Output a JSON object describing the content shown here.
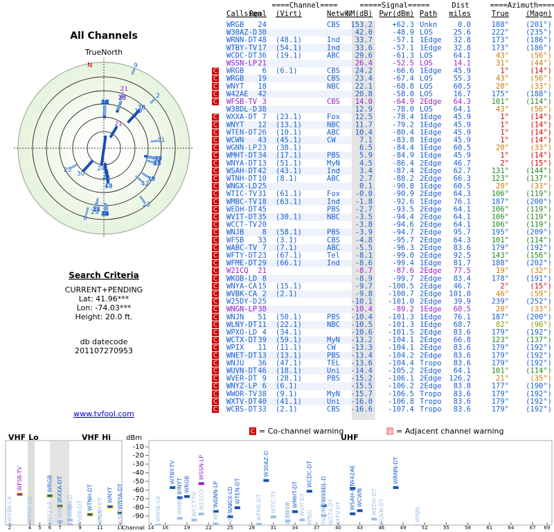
{
  "left": {
    "title": "All Channels",
    "north_label": "TrueNorth",
    "north_mark": "N",
    "criteria_title": "Search Criteria",
    "criteria": [
      "CURRENT+PENDING",
      "Lat: 41.96***",
      "Lon: -74.03***",
      "Height: 20.0 ft."
    ],
    "datecode_label": "db datecode",
    "datecode": "201107270953",
    "link": "www.tvfool.com"
  },
  "table": {
    "group_headers": [
      "====Channel====",
      "=====Signal=====",
      "Dist",
      "====Azimuth===="
    ],
    "columns": [
      "Callsign",
      "Real",
      "(Virt)",
      "Netwk",
      "NM(dB)",
      "Pwr(dBm)",
      "Path",
      "miles",
      "True",
      "(Magn)"
    ],
    "rows": [
      [
        "WRGB",
        "24",
        "",
        "CBS",
        "153.2",
        "+62.3",
        "Unkn",
        "0.0",
        "188°",
        "(201°)"
      ],
      [
        "W30AZ-D",
        "30",
        "",
        "",
        "42.0",
        "-48.9",
        "LOS",
        "25.6",
        "222°",
        "(235°)"
      ],
      [
        "WRNN-DT",
        "48",
        "(48.1)",
        "Ind",
        "33.7",
        "-57.1",
        "1Edge",
        "32.8",
        "173°",
        "(186°)"
      ],
      [
        "WTBY-TV",
        "17",
        "(54.1)",
        "Ind",
        "33.6",
        "-57.1",
        "1Edge",
        "32.8",
        "173°",
        "(186°)"
      ],
      [
        "WCDC-DT",
        "36",
        "(19.1)",
        "ABC",
        "29.6",
        "-61.3",
        "LOS",
        "64.1",
        "43°",
        "(56°)"
      ],
      [
        "WSSN-LP",
        "21",
        "",
        "",
        "26.4",
        "-52.5",
        "LOS",
        "14.1",
        "31°",
        "(44°)"
      ],
      [
        "WRGB",
        "6",
        "(6.1)",
        "CBS",
        "24.2",
        "-66.6",
        "1Edge",
        "45.9",
        "1°",
        "(14°)"
      ],
      [
        "WRGB",
        "19",
        "",
        "CBS",
        "23.4",
        "-67.4",
        "LOS",
        "55.3",
        "43°",
        "(56°)"
      ],
      [
        "WNYT",
        "18",
        "",
        "NBC",
        "22.1",
        "-68.8",
        "LOS",
        "60.5",
        "20°",
        "(33°)"
      ],
      [
        "W42AE",
        "42",
        "",
        "",
        "20.8",
        "-58.0",
        "LOS",
        "16.7",
        "175°",
        "(188°)"
      ],
      [
        "WFSB-TV",
        "3",
        "",
        "CBS",
        "14.0",
        "-64.9",
        "2Edge",
        "64.3",
        "101°",
        "(114°)"
      ],
      [
        "W38DL-D",
        "38",
        "",
        "",
        "12.9",
        "-78.0",
        "LOS",
        "64.1",
        "43°",
        "(56°)"
      ],
      [
        "WXXA-DT",
        "7",
        "(23.1)",
        "Fox",
        "12.5",
        "-78.4",
        "1Edge",
        "45.9",
        "1°",
        "(14°)"
      ],
      [
        "WNYT",
        "12",
        "(13.1)",
        "NBC",
        "11.7",
        "-79.2",
        "1Edge",
        "45.9",
        "1°",
        "(14°)"
      ],
      [
        "WTEN-DT",
        "26",
        "(10.1)",
        "ABC",
        "10.4",
        "-80.4",
        "1Edge",
        "45.9",
        "1°",
        "(14°)"
      ],
      [
        "WCWN",
        "43",
        "(45.1)",
        "CW",
        "7.1",
        "-83.8",
        "1Edge",
        "45.9",
        "1°",
        "(14°)"
      ],
      [
        "WGNN-LP",
        "23",
        "(38.1)",
        "",
        "6.5",
        "-84.4",
        "1Edge",
        "60.5",
        "20°",
        "(33°)"
      ],
      [
        "WMHT-DT",
        "34",
        "(17.1)",
        "PBS",
        "5.9",
        "-84.9",
        "1Edge",
        "45.9",
        "1°",
        "(14°)"
      ],
      [
        "WNYA-DT",
        "13",
        "(51.1)",
        "MyN",
        "4.5",
        "-86.4",
        "2Edge",
        "46.7",
        "2°",
        "(15°)"
      ],
      [
        "WSAH-DT",
        "42",
        "(43.1)",
        "Ind",
        "3.4",
        "-87.4",
        "2Edge",
        "62.7",
        "131°",
        "(144°)"
      ],
      [
        "WTNH-DT",
        "10",
        "(8.1)",
        "ABC",
        "2.7",
        "-88.2",
        "2Edge",
        "66.3",
        "123°",
        "(137°)"
      ],
      [
        "WNGX-LD",
        "25",
        "",
        "",
        "0.1",
        "-90.8",
        "1Edge",
        "60.5",
        "20°",
        "(33°)"
      ],
      [
        "WTIC-TV",
        "31",
        "(61.1)",
        "Fox",
        "-0.0",
        "-90.9",
        "2Edge",
        "64.3",
        "106°",
        "(119°)"
      ],
      [
        "WMBC-TV",
        "18",
        "(63.1)",
        "Ind",
        "-1.8",
        "-92.6",
        "1Edge",
        "76.1",
        "187°",
        "(200°)"
      ],
      [
        "WEDH-DT",
        "45",
        "",
        "PBS",
        "-2.7",
        "-93.5",
        "2Edge",
        "64.1",
        "106°",
        "(119°)"
      ],
      [
        "WVIT-DT",
        "35",
        "(30.1)",
        "NBC",
        "-3.5",
        "-94.4",
        "2Edge",
        "64.1",
        "106°",
        "(119°)"
      ],
      [
        "WCCT-TV",
        "20",
        "",
        "",
        "-3.8",
        "-94.6",
        "2Edge",
        "64.1",
        "106°",
        "(119°)"
      ],
      [
        "WNJB",
        "8",
        "(58.1)",
        "PBS",
        "-3.9",
        "-94.7",
        "2Edge",
        "95.7",
        "195°",
        "(209°)"
      ],
      [
        "WFSB",
        "33",
        "(3.1)",
        "CBS",
        "-4.8",
        "-95.7",
        "2Edge",
        "64.3",
        "101°",
        "(114°)"
      ],
      [
        "WABC-TV",
        "7",
        "(7.1)",
        "ABC",
        "-5.5",
        "-96.3",
        "2Edge",
        "83.6",
        "179°",
        "(192°)"
      ],
      [
        "WFTY-DT",
        "23",
        "(67.1)",
        "Tel",
        "-8.1",
        "-99.0",
        "2Edge",
        "92.5",
        "143°",
        "(156°)"
      ],
      [
        "WFME-DT",
        "29",
        "(66.1)",
        "Ind",
        "-8.6",
        "-99.4",
        "1Edge",
        "81.7",
        "188°",
        "(202°)"
      ],
      [
        "W21CQ",
        "21",
        "",
        "",
        "-8.7",
        "-87.6",
        "2Edge",
        "77.5",
        "19°",
        "(32°)"
      ],
      [
        "WKOB-LD",
        "8",
        "",
        "",
        "-8.9",
        "-99.7",
        "2Edge",
        "83.4",
        "178°",
        "(191°)"
      ],
      [
        "WNYA-CA",
        "15",
        "(15.1)",
        "",
        "-9.7",
        "-100.5",
        "2Edge",
        "46.7",
        "2°",
        "(15°)"
      ],
      [
        "WVBK-CA",
        "2",
        "(2.1)",
        "",
        "-9.8",
        "-100.7",
        "2Edge",
        "101.0",
        "46°",
        "(59°)"
      ],
      [
        "W25DY-D",
        "25",
        "",
        "",
        "-10.1",
        "-101.0",
        "2Edge",
        "39.9",
        "239°",
        "(252°)"
      ],
      [
        "WNGN-LP",
        "38",
        "",
        "",
        "-10.4",
        "-89.2",
        "1Edge",
        "60.5",
        "20°",
        "(33°)"
      ],
      [
        "WNJN",
        "51",
        "(50.1)",
        "PBS",
        "-10.4",
        "-101.3",
        "1Edge",
        "76.1",
        "187°",
        "(200°)"
      ],
      [
        "WLNY-DT",
        "11",
        "(22.1)",
        "NBC",
        "-10.5",
        "-101.3",
        "1Edge",
        "68.7",
        "82°",
        "(96°)"
      ],
      [
        "WPXO-LD",
        "4",
        "(34.1)",
        "",
        "-10.6",
        "-101.5",
        "2Edge",
        "83.6",
        "179°",
        "(192°)"
      ],
      [
        "WCTX-DT",
        "39",
        "(59.1)",
        "MyN",
        "-13.2",
        "-104.1",
        "2Edge",
        "66.8",
        "123°",
        "(137°)"
      ],
      [
        "WPIX",
        "11",
        "(11.1)",
        "CW",
        "-13.3",
        "-104.1",
        "2Edge",
        "83.6",
        "179°",
        "(192°)"
      ],
      [
        "WNET-DT",
        "13",
        "(13.1)",
        "PBS",
        "-13.4",
        "-104.2",
        "2Edge",
        "83.6",
        "179°",
        "(192°)"
      ],
      [
        "WNJU",
        "36",
        "(47.1)",
        "TEL",
        "-13.6",
        "-104.4",
        "Tropo",
        "83.6",
        "179°",
        "(192°)"
      ],
      [
        "WUVN-DT",
        "46",
        "(18.1)",
        "Uni",
        "-14.4",
        "-105.2",
        "2Edge",
        "64.1",
        "101°",
        "(114°)"
      ],
      [
        "WVER-DT",
        "9",
        "(28.1)",
        "PBS",
        "-15.2",
        "-106.1",
        "2Edge",
        "126.2",
        "21°",
        "(35°)"
      ],
      [
        "WNYZ-LP",
        "6",
        "(6.1)",
        "",
        "-15.5",
        "-106.2",
        "2Edge",
        "83.8",
        "177°",
        "(190°)"
      ],
      [
        "WWOR-TV",
        "38",
        "(9.1)",
        "MyN",
        "-15.7",
        "-106.5",
        "Tropo",
        "83.6",
        "179°",
        "(192°)"
      ],
      [
        "WXTV-DT",
        "40",
        "(41.1)",
        "Uni",
        "-16.0",
        "-106.8",
        "Tropo",
        "83.6",
        "179°",
        "(192°)"
      ],
      [
        "WCBS-DT",
        "33",
        "(2.1)",
        "CBS",
        "-16.6",
        "-107.4",
        "Tropo",
        "83.6",
        "179°",
        "(192°)"
      ]
    ],
    "flags": [
      "",
      "",
      "",
      "",
      "",
      "",
      "C",
      "C",
      "C",
      "C",
      "C",
      "",
      "C",
      "C",
      "C",
      "C",
      "C",
      "C",
      "C",
      "C",
      "C",
      "C",
      "C",
      "C",
      "C",
      "C",
      "C",
      "C",
      "C",
      "C",
      "C",
      "C",
      "C",
      "C",
      "C",
      "C",
      "C",
      "C",
      "C",
      "C",
      "C",
      "C",
      "C",
      "C",
      "C",
      "C",
      "C",
      "C",
      "C",
      "C",
      "C"
    ],
    "colors": [
      "#1a5fd0",
      "#1a5fd0",
      "#1a5fd0",
      "#1a5fd0",
      "#1a5fd0",
      "#9922cc",
      "#1a5fd0",
      "#1a5fd0",
      "#1a5fd0",
      "#1a5fd0",
      "#9922cc",
      "#1a5fd0",
      "#1a5fd0",
      "#1a5fd0",
      "#1a5fd0",
      "#1a5fd0",
      "#1a5fd0",
      "#1a5fd0",
      "#1a5fd0",
      "#1a5fd0",
      "#1a5fd0",
      "#1a5fd0",
      "#1a5fd0",
      "#1a5fd0",
      "#1a5fd0",
      "#1a5fd0",
      "#1a5fd0",
      "#1a5fd0",
      "#1a5fd0",
      "#1a5fd0",
      "#1a5fd0",
      "#1a5fd0",
      "#9922cc",
      "#1a5fd0",
      "#1a5fd0",
      "#1a5fd0",
      "#1a5fd0",
      "#9922cc",
      "#1a5fd0",
      "#1a5fd0",
      "#1a5fd0",
      "#1a5fd0",
      "#1a5fd0",
      "#1a5fd0",
      "#1a5fd0",
      "#1a5fd0",
      "#1a5fd0",
      "#1a5fd0",
      "#1a5fd0",
      "#1a5fd0",
      "#1a5fd0"
    ]
  },
  "bottom": {
    "vhf_lo": "VHF Lo",
    "vhf_hi": "VHF Hi",
    "uhf": "UHF",
    "ylabel": "dBm",
    "xlabel": "Channel",
    "ylim": [
      -3,
      -97
    ],
    "yticks": [
      -10,
      -20,
      -30,
      -40,
      -50,
      -60,
      -70,
      -80,
      -90
    ],
    "vhf_ticks": [
      2,
      4,
      5,
      6,
      7,
      9,
      11,
      13
    ],
    "uhf_ticks": [
      14,
      16,
      19,
      22,
      25,
      28,
      31,
      34,
      37,
      40,
      43,
      46,
      49,
      52,
      55,
      58,
      61,
      64,
      67,
      69
    ],
    "legend_co_mark": "C",
    "legend_co": "= Co-channel warning",
    "legend_adj_mark": "a",
    "legend_adj": "= Adjacent channel warning"
  }
}
